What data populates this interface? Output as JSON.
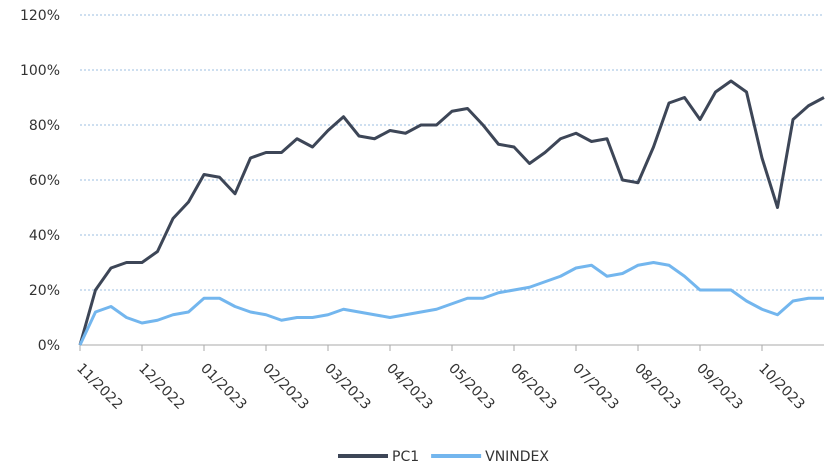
{
  "chart_data": {
    "type": "line",
    "categories": [
      "11/2022",
      null,
      null,
      null,
      "12/2022",
      null,
      null,
      null,
      "01/2023",
      null,
      null,
      null,
      "02/2023",
      null,
      null,
      null,
      "03/2023",
      null,
      null,
      null,
      "04/2023",
      null,
      null,
      null,
      "05/2023",
      null,
      null,
      null,
      "06/2023",
      null,
      null,
      null,
      "07/2023",
      null,
      null,
      null,
      "08/2023",
      null,
      null,
      null,
      "09/2023",
      null,
      null,
      null,
      "10/2023",
      null,
      null,
      null,
      null
    ],
    "series": [
      {
        "name": "PC1",
        "color": "#3d4657",
        "values": [
          0,
          20,
          28,
          30,
          30,
          34,
          46,
          52,
          62,
          61,
          55,
          68,
          70,
          70,
          75,
          72,
          78,
          83,
          76,
          75,
          78,
          77,
          80,
          80,
          85,
          86,
          80,
          73,
          72,
          66,
          70,
          75,
          77,
          74,
          75,
          60,
          59,
          72,
          88,
          90,
          82,
          92,
          96,
          92,
          68,
          50,
          82,
          87,
          90
        ]
      },
      {
        "name": "VNINDEX",
        "color": "#73b6ee",
        "values": [
          0,
          12,
          14,
          10,
          8,
          9,
          11,
          12,
          17,
          17,
          14,
          12,
          11,
          9,
          10,
          10,
          11,
          13,
          12,
          11,
          10,
          11,
          12,
          13,
          15,
          17,
          17,
          19,
          20,
          21,
          23,
          25,
          28,
          29,
          25,
          26,
          29,
          30,
          29,
          25,
          20,
          20,
          20,
          16,
          13,
          11,
          16,
          17,
          17
        ]
      }
    ],
    "ylim": [
      0,
      120
    ],
    "yticks": [
      {
        "value": 0,
        "label": "0%"
      },
      {
        "value": 20,
        "label": "20%"
      },
      {
        "value": 40,
        "label": "40%"
      },
      {
        "value": 60,
        "label": "60%"
      },
      {
        "value": 80,
        "label": "80%"
      },
      {
        "value": 100,
        "label": "100%"
      },
      {
        "value": 120,
        "label": "120%"
      }
    ],
    "grid": true,
    "legend": "bottom"
  }
}
